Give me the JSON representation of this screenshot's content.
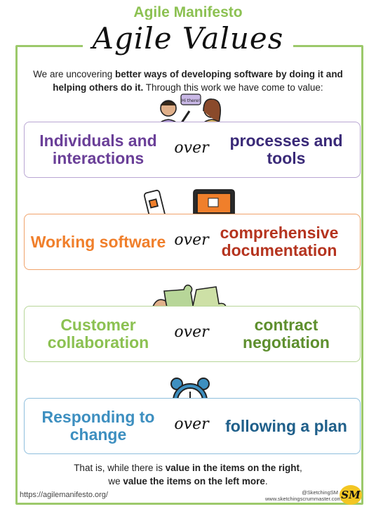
{
  "header": {
    "top_title": "Agile Manifesto",
    "script_title": "Agile Values"
  },
  "intro": {
    "part1": "We are uncovering ",
    "bold1": "better ways of developing software by doing it and helping others do it.",
    "part2": " Through this work we have come to value:"
  },
  "values": [
    {
      "left": "Individuals and interactions",
      "over": "over",
      "right": "processes and tools",
      "color": "#6a3f98",
      "right_color": "#3a2a78",
      "border": "#b9a6d3"
    },
    {
      "left": "Working software",
      "over": "over",
      "right": "comprehensive documentation",
      "color": "#f07f2b",
      "right_color": "#b5341f",
      "border": "#f0a36b"
    },
    {
      "left": "Customer collaboration",
      "over": "over",
      "right": "contract negotiation",
      "color": "#8cc152",
      "right_color": "#5e8f2e",
      "border": "#b7d698"
    },
    {
      "left": "Responding to change",
      "over": "over",
      "right": "following a plan",
      "color": "#3d8fc0",
      "right_color": "#1f5f8a",
      "border": "#8fbfdd"
    }
  ],
  "speech_bubble": "Hi there!",
  "footer": {
    "line1_pre": "That is, while there is ",
    "line1_bold": "value in the items on the right",
    "line1_post": ",",
    "line2_pre": "we ",
    "line2_bold": "value the items on the left more",
    "line2_post": "."
  },
  "url": "https://agilemanifesto.org/",
  "credits": {
    "handle": "@SketchingSM",
    "site": "www.sketchingscrummaster.com"
  },
  "logo_text": "SM"
}
